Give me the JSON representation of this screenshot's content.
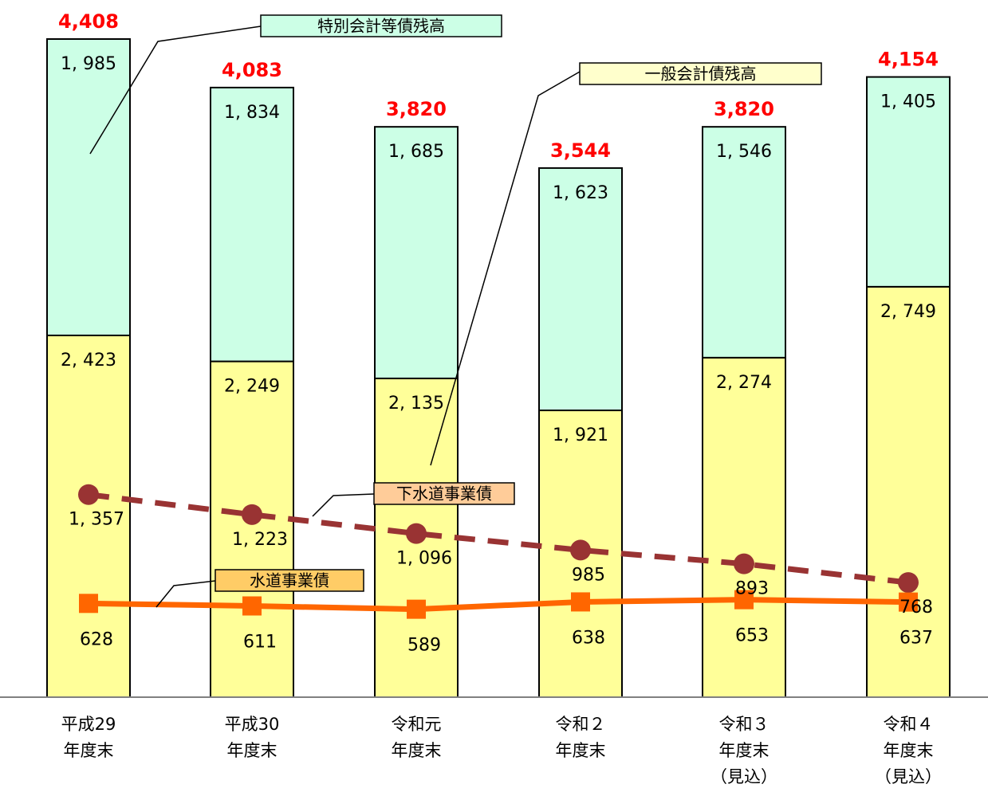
{
  "chart_data": {
    "type": "bar",
    "stacked": true,
    "categories": [
      [
        "平成29",
        "年度末"
      ],
      [
        "平成30",
        "年度末"
      ],
      [
        "令和元",
        "年度末"
      ],
      [
        "令和２",
        "年度末"
      ],
      [
        "令和３",
        "年度末",
        "（見込）"
      ],
      [
        "令和４",
        "年度末",
        "（見込）"
      ]
    ],
    "series": [
      {
        "name": "一般会計債残高",
        "kind": "bar",
        "color": "#ffff99",
        "values": [
          2423,
          2249,
          2135,
          1921,
          2274,
          2749
        ],
        "labels": [
          "2, 423",
          "2, 249",
          "2, 135",
          "1, 921",
          "2, 274",
          "2, 749"
        ]
      },
      {
        "name": "特別会計等債残高",
        "kind": "bar",
        "color": "#ccffe6",
        "values": [
          1985,
          1834,
          1685,
          1623,
          1546,
          1405
        ],
        "labels": [
          "1, 985",
          "1, 834",
          "1, 685",
          "1, 623",
          "1, 546",
          "1, 405"
        ]
      },
      {
        "name": "下水道事業債",
        "kind": "line",
        "style": "dashed",
        "marker": "circle",
        "color": "#993333",
        "values": [
          1357,
          1223,
          1096,
          985,
          893,
          768
        ],
        "labels": [
          "1, 357",
          "1, 223",
          "1, 096",
          "985",
          "893",
          "768"
        ]
      },
      {
        "name": "水道事業債",
        "kind": "line",
        "style": "solid",
        "marker": "square",
        "color": "#ff6600",
        "values": [
          628,
          611,
          589,
          638,
          653,
          637
        ],
        "labels": [
          "628",
          "611",
          "589",
          "638",
          "653",
          "637"
        ]
      }
    ],
    "totals": [
      4408,
      4083,
      3820,
      3544,
      3820,
      4154
    ],
    "total_labels": [
      "4,408",
      "4,083",
      "3,820",
      "3,544",
      "3,820",
      "4,154"
    ],
    "total_color": "#ff0000",
    "callout_colors": [
      "#ccffe6",
      "#ffffcc",
      "#ffcc99",
      "#ffcc66"
    ],
    "ylim": [
      0,
      4408
    ],
    "grid": false,
    "title": "",
    "xlabel": "",
    "ylabel": ""
  }
}
